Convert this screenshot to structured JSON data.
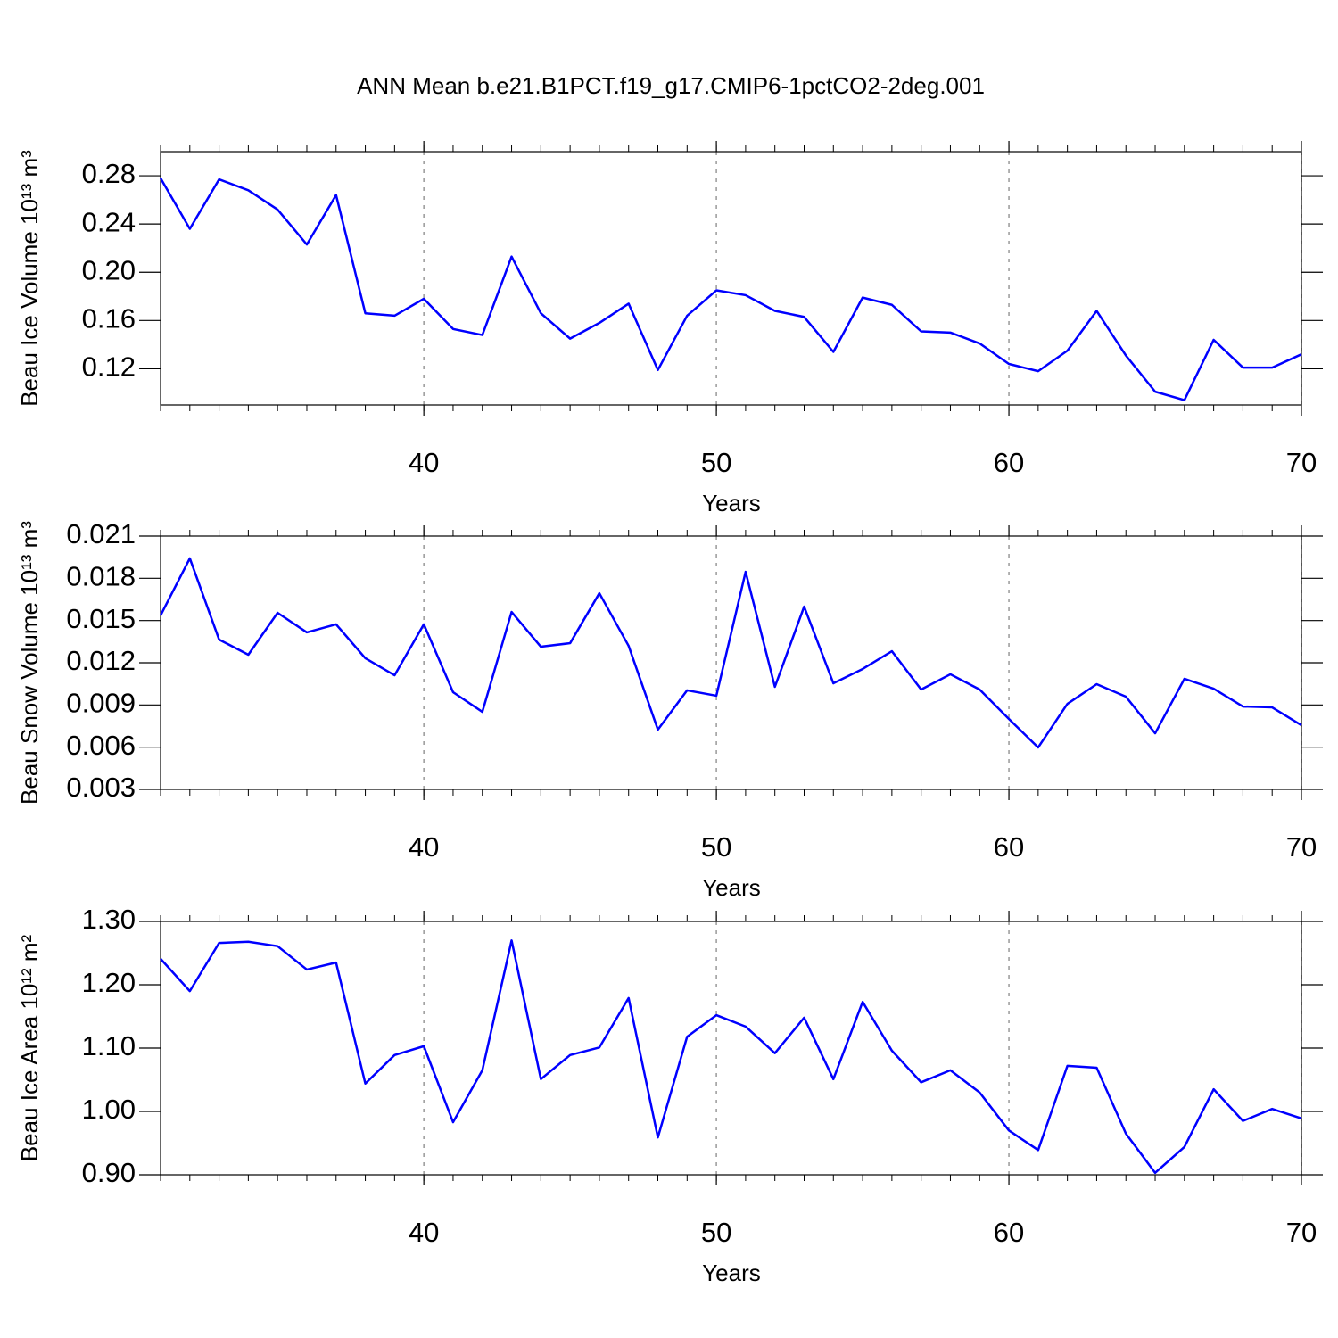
{
  "title": "ANN Mean b.e21.B1PCT.f19_g17.CMIP6-1pctCO2-2deg.001",
  "chart_data": [
    {
      "type": "line",
      "ylabel": "Beau Ice Volume 10¹³ m³",
      "xlabel": "Years",
      "color": "#0000ff",
      "xgrid": true,
      "x": [
        31,
        32,
        33,
        34,
        35,
        36,
        37,
        38,
        39,
        40,
        41,
        42,
        43,
        44,
        45,
        46,
        47,
        48,
        49,
        50,
        51,
        52,
        53,
        54,
        55,
        56,
        57,
        58,
        59,
        60,
        61,
        62,
        63,
        64,
        65,
        66,
        67,
        68,
        69,
        70
      ],
      "values": [
        0.278,
        0.236,
        0.277,
        0.268,
        0.252,
        0.223,
        0.264,
        0.166,
        0.164,
        0.178,
        0.153,
        0.148,
        0.213,
        0.166,
        0.145,
        0.158,
        0.174,
        0.119,
        0.164,
        0.185,
        0.181,
        0.168,
        0.163,
        0.134,
        0.179,
        0.173,
        0.151,
        0.15,
        0.141,
        0.124,
        0.118,
        0.135,
        0.168,
        0.131,
        0.101,
        0.094,
        0.144,
        0.121,
        0.121,
        0.132
      ],
      "xlim": [
        31,
        70
      ],
      "xticks": [
        40,
        50,
        60,
        70
      ],
      "ylim": [
        0.09,
        0.3
      ],
      "yticks": [
        0.12,
        0.16,
        {
          "value": 0.2,
          "label": "0.20"
        },
        0.24,
        0.28
      ]
    },
    {
      "type": "line",
      "ylabel": "Beau Snow Volume 10¹³ m³",
      "xlabel": "Years",
      "color": "#0000ff",
      "xgrid": true,
      "x": [
        31,
        32,
        33,
        34,
        35,
        36,
        37,
        38,
        39,
        40,
        41,
        42,
        43,
        44,
        45,
        46,
        47,
        48,
        49,
        50,
        51,
        52,
        53,
        54,
        55,
        56,
        57,
        58,
        59,
        60,
        61,
        62,
        63,
        64,
        65,
        66,
        67,
        68,
        69,
        70
      ],
      "values": [
        0.01536,
        0.01942,
        0.01365,
        0.01257,
        0.01555,
        0.01416,
        0.01473,
        0.01232,
        0.01111,
        0.01473,
        0.00991,
        0.00851,
        0.01561,
        0.01314,
        0.01339,
        0.01694,
        0.0132,
        0.00725,
        0.01004,
        0.00966,
        0.01846,
        0.01029,
        0.01599,
        0.01054,
        0.01156,
        0.01282,
        0.0101,
        0.01118,
        0.0101,
        0.00801,
        0.00598,
        0.00908,
        0.01048,
        0.00959,
        0.00699,
        0.01086,
        0.01016,
        0.00889,
        0.00883,
        0.00756
      ],
      "xlim": [
        31,
        70
      ],
      "xticks": [
        40,
        50,
        60,
        70
      ],
      "ylim": [
        0.003,
        0.021
      ],
      "yticks": [
        0.003,
        0.006,
        0.009,
        0.012,
        0.015,
        0.018,
        0.021
      ]
    },
    {
      "type": "line",
      "ylabel": "Beau Ice Area 10¹² m²",
      "xlabel": "Years",
      "color": "#0000ff",
      "xgrid": true,
      "x": [
        31,
        32,
        33,
        34,
        35,
        36,
        37,
        38,
        39,
        40,
        41,
        42,
        43,
        44,
        45,
        46,
        47,
        48,
        49,
        50,
        51,
        52,
        53,
        54,
        55,
        56,
        57,
        58,
        59,
        60,
        61,
        62,
        63,
        64,
        65,
        66,
        67,
        68,
        69,
        70
      ],
      "values": [
        1.241,
        1.19,
        1.266,
        1.268,
        1.261,
        1.224,
        1.235,
        1.044,
        1.089,
        1.103,
        0.983,
        1.065,
        1.27,
        1.051,
        1.089,
        1.101,
        1.179,
        0.959,
        1.118,
        1.152,
        1.134,
        1.092,
        1.148,
        1.051,
        1.173,
        1.096,
        1.046,
        1.065,
        1.03,
        0.97,
        0.939,
        1.072,
        1.069,
        0.965,
        0.903,
        0.944,
        1.035,
        0.985,
        1.004,
        0.989
      ],
      "xlim": [
        31,
        70
      ],
      "xticks": [
        40,
        50,
        60,
        70
      ],
      "ylim": [
        0.9,
        1.3
      ],
      "yticks": [
        {
          "value": 0.9,
          "label": "0.90"
        },
        {
          "value": 1.0,
          "label": "1.00"
        },
        {
          "value": 1.1,
          "label": "1.10"
        },
        {
          "value": 1.2,
          "label": "1.20"
        },
        {
          "value": 1.3,
          "label": "1.30"
        }
      ]
    }
  ]
}
